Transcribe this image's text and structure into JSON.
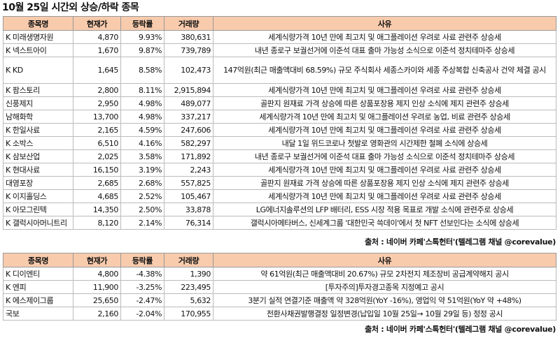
{
  "title": "10월 25일  시간외 상승/하락 종목",
  "headers": {
    "name": "종목명",
    "price": "현재가",
    "rate": "등락률",
    "volume": "거래량",
    "reason": "사유"
  },
  "rise_rows": [
    {
      "name": "K 미래생명자원",
      "price": "4,870",
      "rate": "9.93%",
      "volume": "380,631",
      "reason": "세계식량가격 10년 만에 최고치 및 애그플레이션 우려로 사료 관련주 상승세"
    },
    {
      "name": "K 넥스트아이",
      "price": "1,670",
      "rate": "9.87%",
      "volume": "739,789",
      "reason": "내년 종로구 보궐선거에 이준석 대표 출마 가능성 소식으로 이준석 정치테마주 상승세"
    },
    {
      "name": "K KD",
      "price": "1,645",
      "rate": "8.58%",
      "volume": "102,473",
      "reason": "147억원(최근 매출액대비 68.59%) 규모 주식회사 세종스카이와 세종 주상복합 신축공사 건약 체결 공시"
    },
    {
      "name": "K 팜스토리",
      "price": "2,800",
      "rate": "8.11%",
      "volume": "2,915,894",
      "reason": "세계식량가격 10년 만에 최고치 및 애그플레이션 우려로 사료 관련주 상승세"
    },
    {
      "name": "신풍제지",
      "price": "2,950",
      "rate": "4.98%",
      "volume": "489,077",
      "reason": "골판지 원재료 가격 상승에 따른 상품포장용 제지 인상 소식에 제지 관련주 상승세"
    },
    {
      "name": "남해화학",
      "price": "13,700",
      "rate": "4.98%",
      "volume": "337,217",
      "reason": "세계식량가격 10년 만에 최고치 및 애그플레이션 우려로 농업, 비료 관련주 상승세"
    },
    {
      "name": "K 한일사료",
      "price": "2,165",
      "rate": "4.59%",
      "volume": "247,606",
      "reason": "세계식량가격 10년 만에 최고치 및 애그플레이션 우려로 사료 관련주 상승세"
    },
    {
      "name": "K 소박스",
      "price": "6,510",
      "rate": "4.16%",
      "volume": "582,297",
      "reason": "내달 1일 위드코로나 첫발로 영화관의 시간제한 철폐 소식에 상승세"
    },
    {
      "name": "K 삼보산업",
      "price": "2,025",
      "rate": "3.58%",
      "volume": "171,892",
      "reason": "내년 종로구 보궐선거에 이준석 대표 출마 가능성 소식으로 이준석 정치테마주 상승세"
    },
    {
      "name": "K 현대사료",
      "price": "16,150",
      "rate": "3.19%",
      "volume": "2,243",
      "reason": "세계식량가격 10년 만에 최고치 및 애그플레이션 우려로 사료 관련주 상승세"
    },
    {
      "name": "대영포장",
      "price": "2,685",
      "rate": "2.68%",
      "volume": "557,825",
      "reason": "골판지 원재료 가격 상승에 따른 상품포장용 제지 인상 소식에 제지 관련주 상승세"
    },
    {
      "name": "K 이지홀딩스",
      "price": "4,685",
      "rate": "2.52%",
      "volume": "105,467",
      "reason": "세계식량가격 10년 만에 최고치 및 애그플레이션 우려로 사료 관련주 상승세"
    },
    {
      "name": "K 아모그린텍",
      "price": "14,350",
      "rate": "2.50%",
      "volume": "33,878",
      "reason": "LG에너지솔루션의 LFP 배터리, ESS 시장 적용 목표로 개발 소식에 관련주로 상승세"
    },
    {
      "name": "K 갤럭시아머니트리",
      "price": "8,120",
      "rate": "2.14%",
      "volume": "76,314",
      "reason": "갤럭시아메타버스, 신세계그룹 '대한민국 쓱데이'에서 첫 NFT 선보인다는 소식에 상승세"
    }
  ],
  "fall_rows": [
    {
      "name": "K 디이엔티",
      "price": "4,800",
      "rate": "-4.38%",
      "volume": "1,390",
      "reason": "약 61억원(최근 매출액대비 20.67%) 규모 2차전지 제조장비 공급계약해지 공시"
    },
    {
      "name": "K 엔피",
      "price": "11,900",
      "rate": "-3.25%",
      "volume": "223,495",
      "reason": "[투자주의]투자경고종목 지정예고 공시"
    },
    {
      "name": "K 에스제이그룹",
      "price": "25,650",
      "rate": "-2.47%",
      "volume": "5,632",
      "reason": "3분기 실적 연결기준 매출액 약 328억원(YoY -16%), 영업익 약 51억원(YoY 약 +48%)"
    },
    {
      "name": "국보",
      "price": "2,160",
      "rate": "-2.04%",
      "volume": "170,955",
      "reason": "전환사채권발행결정 일정변경(납입일 10월 25일→ 10월 29일 등) 정정 공시"
    }
  ],
  "source": "출처 : 네이버 카페'스톡헌터'(텔레그램 채널 @corevalue)"
}
